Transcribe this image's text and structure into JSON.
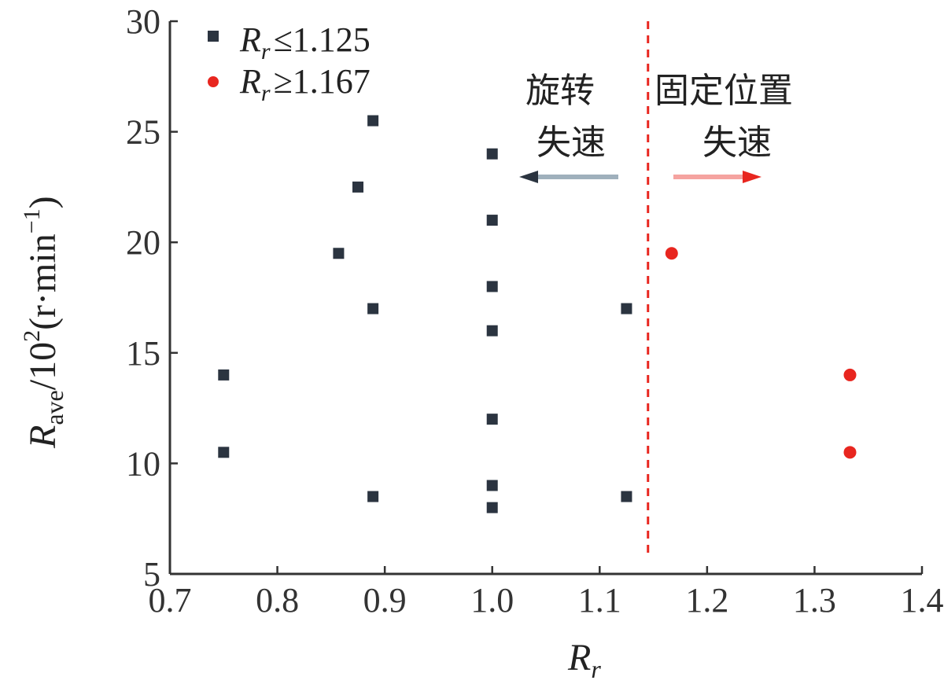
{
  "chart_data": {
    "type": "scatter",
    "xlabel_main": "R",
    "xlabel_sub": "r",
    "ylabel_main": "R",
    "ylabel_sub": "ave",
    "ylabel_rest": "/10",
    "ylabel_exp": "2",
    "ylabel_unit": "(r·min",
    "ylabel_unit_exp": "−1",
    "ylabel_close": ")",
    "xlim": [
      0.7,
      1.4
    ],
    "ylim": [
      5,
      30
    ],
    "xticks": [
      "0.7",
      "0.8",
      "0.9",
      "1.0",
      "1.1",
      "1.2",
      "1.3",
      "1.4"
    ],
    "yticks": [
      "5",
      "10",
      "15",
      "20",
      "25",
      "30"
    ],
    "threshold_x": 1.145,
    "series": [
      {
        "name": "Rr ≤ 1.125",
        "legend_main": "R",
        "legend_sub": "r",
        "legend_rest": "≤1.125",
        "color": "#2b3440",
        "marker": "square",
        "points": [
          [
            0.75,
            14.0
          ],
          [
            0.75,
            10.5
          ],
          [
            0.857,
            19.5
          ],
          [
            0.875,
            22.5
          ],
          [
            0.889,
            25.5
          ],
          [
            0.889,
            17.0
          ],
          [
            0.889,
            8.5
          ],
          [
            1.0,
            24.0
          ],
          [
            1.0,
            21.0
          ],
          [
            1.0,
            18.0
          ],
          [
            1.0,
            16.0
          ],
          [
            1.0,
            12.0
          ],
          [
            1.0,
            9.0
          ],
          [
            1.0,
            8.0
          ],
          [
            1.125,
            17.0
          ],
          [
            1.125,
            8.5
          ]
        ]
      },
      {
        "name": "Rr ≥ 1.167",
        "legend_main": "R",
        "legend_sub": "r",
        "legend_rest": "≥1.167",
        "color": "#e8261f",
        "marker": "circle",
        "points": [
          [
            1.167,
            19.5
          ],
          [
            1.333,
            14.0
          ],
          [
            1.333,
            10.5
          ]
        ]
      }
    ],
    "annotations": {
      "left_line1": "旋转",
      "left_line2": "失速",
      "right_line1": "固定位置",
      "right_line2": "失速"
    }
  },
  "colors": {
    "left_arrow": "#2b3440",
    "left_arrow_shaft": "#9fb0bc",
    "right_arrow": "#e8261f",
    "right_arrow_shaft": "#f5a3a0",
    "threshold": "#e8261f"
  }
}
